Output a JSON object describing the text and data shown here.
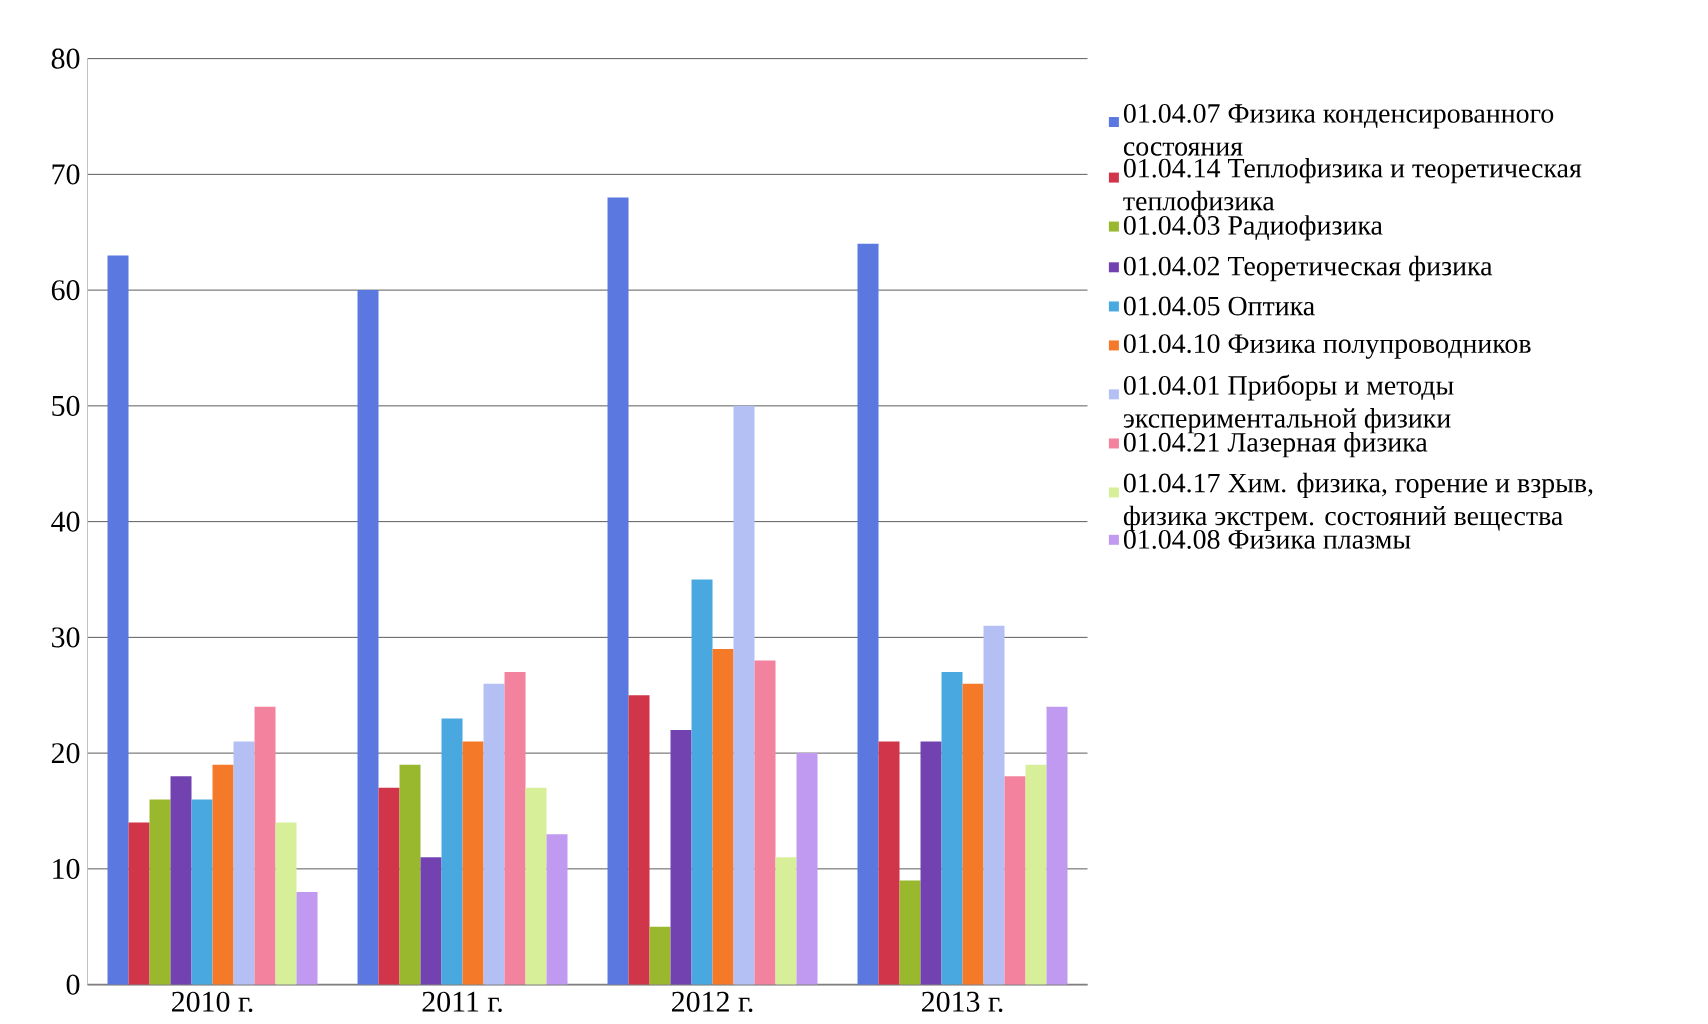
{
  "chart_data": {
    "type": "bar",
    "categories": [
      "2010 г.",
      "2011 г.",
      "2012 г.",
      "2013 г."
    ],
    "series": [
      {
        "name": "01.04.07 Физика конденсированного состояния",
        "color": "#5a78e0",
        "values": [
          63,
          60,
          68,
          64
        ]
      },
      {
        "name": "01.04.14 Теплофизика и теоретическая теплофизика",
        "color": "#d0354a",
        "values": [
          14,
          17,
          25,
          21
        ]
      },
      {
        "name": "01.04.03 Радиофизика",
        "color": "#9ab82e",
        "values": [
          16,
          19,
          5,
          9
        ]
      },
      {
        "name": "01.04.02 Теоретическая физика",
        "color": "#7243b0",
        "values": [
          18,
          11,
          22,
          21
        ]
      },
      {
        "name": "01.04.05 Оптика",
        "color": "#4aa8e0",
        "values": [
          16,
          23,
          35,
          27
        ]
      },
      {
        "name": "01.04.10 Физика полупроводников",
        "color": "#f47a2a",
        "values": [
          19,
          21,
          29,
          26
        ]
      },
      {
        "name": "01.04.01 Приборы и методы экспериментальной физики",
        "color": "#b4c0f4",
        "values": [
          21,
          26,
          50,
          31
        ]
      },
      {
        "name": "01.04.21 Лазерная физика",
        "color": "#f2829e",
        "values": [
          24,
          27,
          28,
          18
        ]
      },
      {
        "name": "01.04.17 Хим. физика, горение и взрыв, физика экстрем. состояний вещества",
        "color": "#d8ef9a",
        "values": [
          14,
          17,
          11,
          19
        ]
      },
      {
        "name": "01.04.08 Физика плазмы",
        "color": "#c09af0",
        "values": [
          8,
          13,
          20,
          24
        ]
      }
    ],
    "ylim": [
      0,
      80
    ],
    "yticks": [
      0,
      10,
      20,
      30,
      40,
      50,
      60,
      70,
      80
    ],
    "grid": "y",
    "legend": "right"
  }
}
